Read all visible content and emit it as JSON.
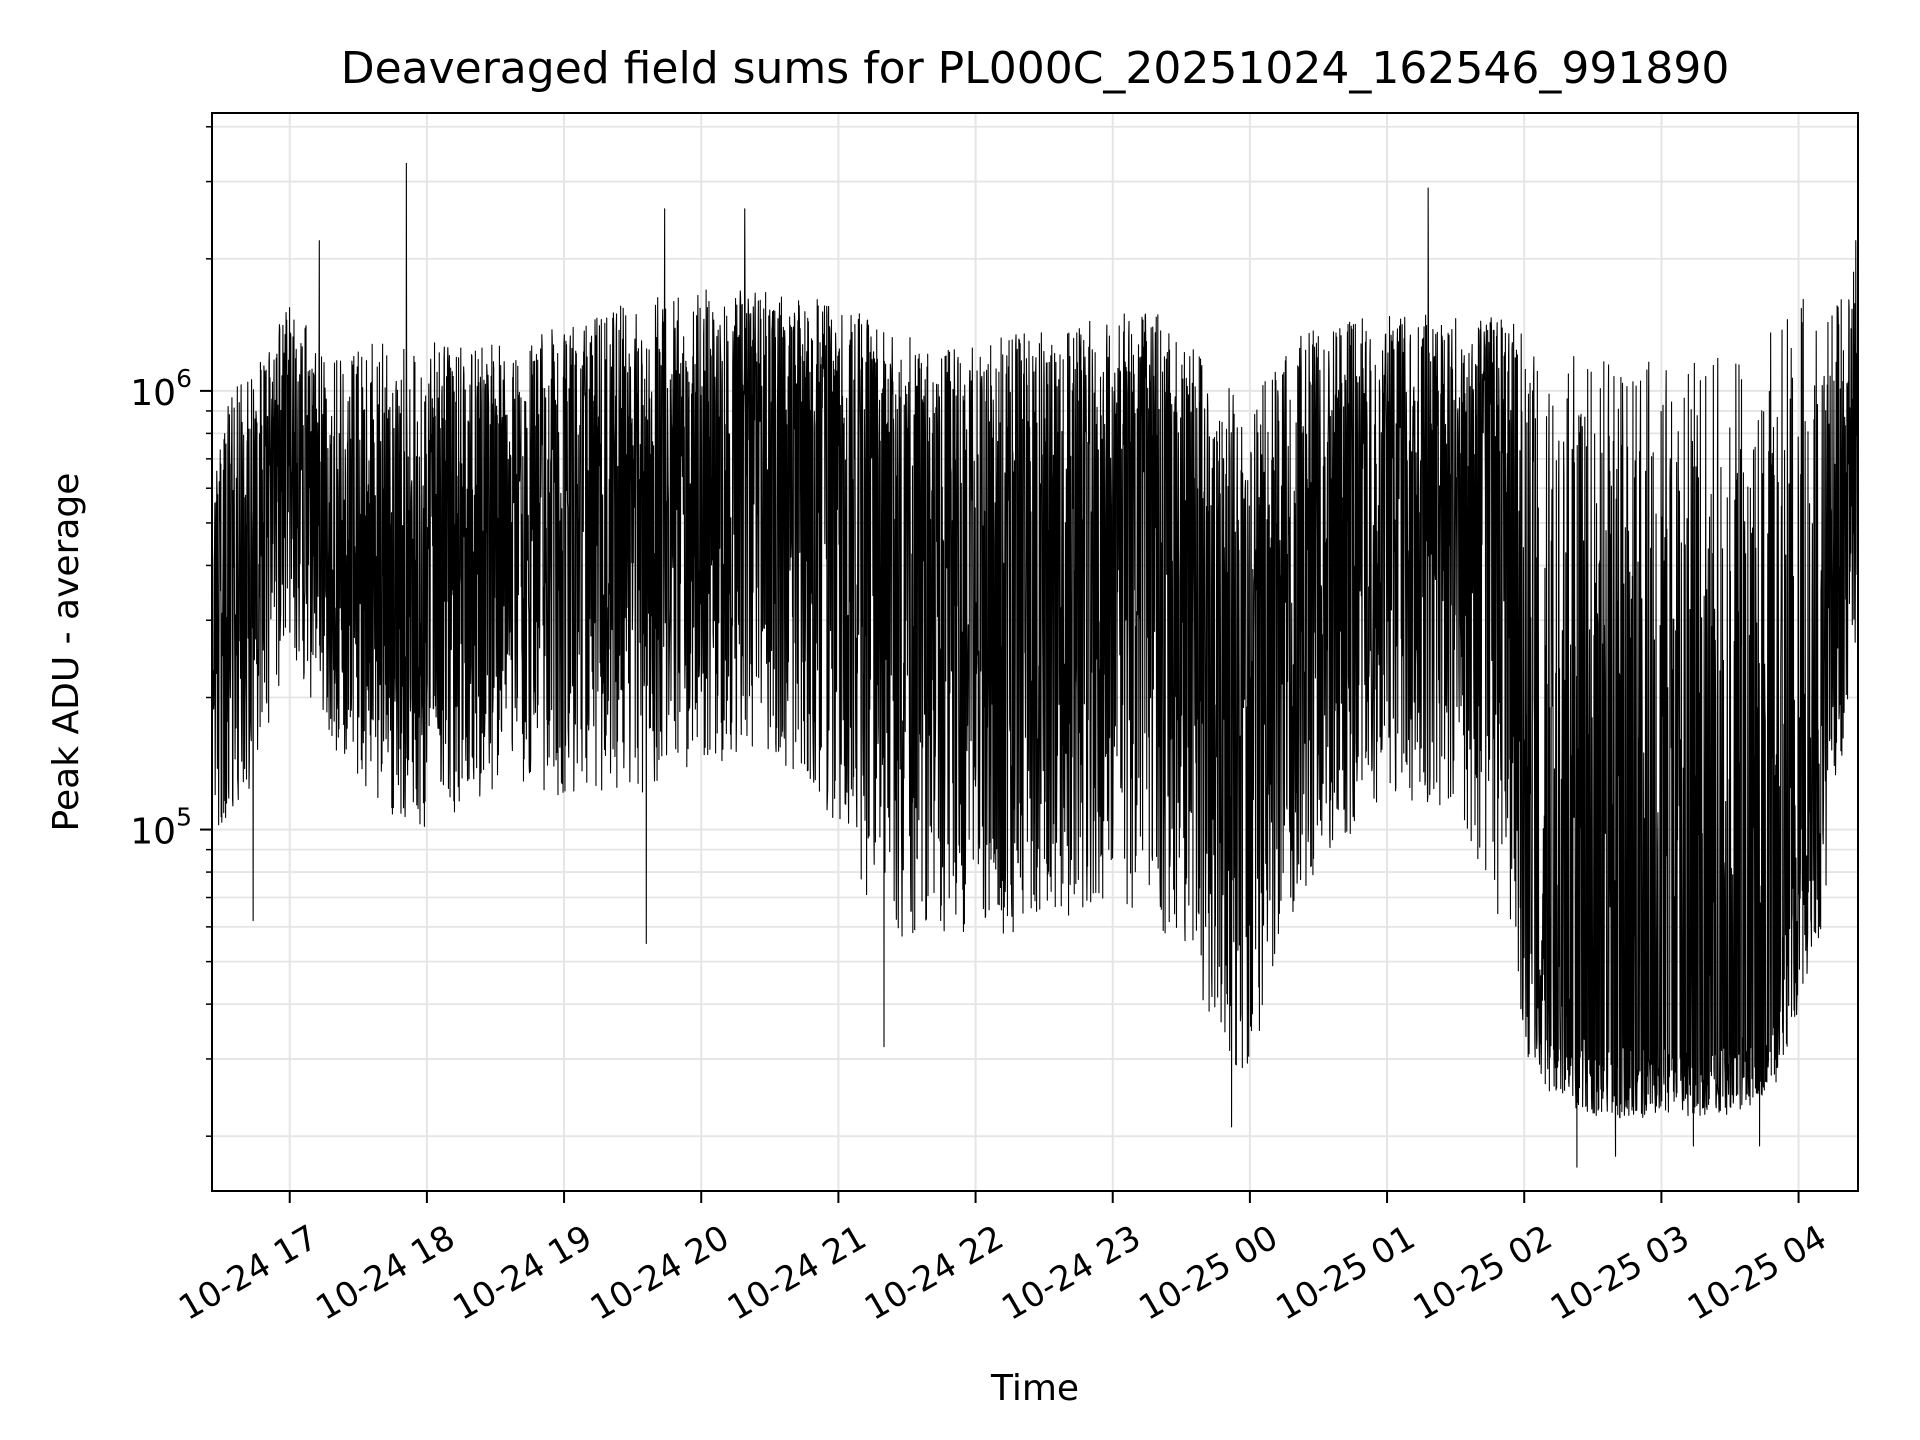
{
  "chart_data": {
    "type": "line",
    "title": "Deaveraged field sums for PL000C_20251024_162546_991890",
    "xlabel": "Time",
    "ylabel": "Peak ADU - average",
    "yscale": "log",
    "grid": true,
    "line_color": "#000000",
    "grid_color": "#e5e5e5",
    "xlim": [
      "2025-10-24 16:26",
      "2025-10-25 04:26"
    ],
    "ylim": [
      15000,
      4300000
    ],
    "xticks": [
      {
        "t": "2025-10-24 17:00",
        "label": "10-24 17"
      },
      {
        "t": "2025-10-24 18:00",
        "label": "10-24 18"
      },
      {
        "t": "2025-10-24 19:00",
        "label": "10-24 19"
      },
      {
        "t": "2025-10-24 20:00",
        "label": "10-24 20"
      },
      {
        "t": "2025-10-24 21:00",
        "label": "10-24 21"
      },
      {
        "t": "2025-10-24 22:00",
        "label": "10-24 22"
      },
      {
        "t": "2025-10-24 23:00",
        "label": "10-24 23"
      },
      {
        "t": "2025-10-25 00:00",
        "label": "10-25 00"
      },
      {
        "t": "2025-10-25 01:00",
        "label": "10-25 01"
      },
      {
        "t": "2025-10-25 02:00",
        "label": "10-25 02"
      },
      {
        "t": "2025-10-25 03:00",
        "label": "10-25 03"
      },
      {
        "t": "2025-10-25 04:00",
        "label": "10-25 04"
      }
    ],
    "yticks": [
      {
        "value": 100000,
        "base": "10",
        "exp": "5"
      },
      {
        "value": 1000000,
        "base": "10",
        "exp": "6"
      }
    ],
    "envelope": {
      "note_times": "approximate values read from the plot",
      "t": [
        "2025-10-24 16:26",
        "2025-10-24 16:40",
        "2025-10-24 17:00",
        "2025-10-24 17:20",
        "2025-10-24 17:40",
        "2025-10-24 18:00",
        "2025-10-24 18:30",
        "2025-10-24 19:00",
        "2025-10-24 19:30",
        "2025-10-24 20:00",
        "2025-10-24 20:30",
        "2025-10-24 21:00",
        "2025-10-24 21:20",
        "2025-10-24 21:40",
        "2025-10-24 22:00",
        "2025-10-24 22:30",
        "2025-10-24 23:00",
        "2025-10-24 23:20",
        "2025-10-24 23:40",
        "2025-10-25 00:00",
        "2025-10-25 00:15",
        "2025-10-25 00:30",
        "2025-10-25 01:00",
        "2025-10-25 01:30",
        "2025-10-25 01:50",
        "2025-10-25 02:05",
        "2025-10-25 02:30",
        "2025-10-25 03:00",
        "2025-10-25 03:30",
        "2025-10-25 03:50",
        "2025-10-25 04:10",
        "2025-10-25 04:26"
      ],
      "typical": [
        350000,
        450000,
        700000,
        450000,
        350000,
        350000,
        400000,
        450000,
        500000,
        650000,
        800000,
        750000,
        550000,
        450000,
        400000,
        350000,
        500000,
        600000,
        350000,
        150000,
        250000,
        400000,
        600000,
        600000,
        700000,
        60000,
        32000,
        32000,
        32000,
        40000,
        250000,
        700000
      ],
      "low": [
        100000,
        110000,
        250000,
        150000,
        110000,
        100000,
        120000,
        120000,
        120000,
        130000,
        150000,
        100000,
        55000,
        60000,
        55000,
        60000,
        70000,
        60000,
        40000,
        25000,
        60000,
        80000,
        120000,
        110000,
        60000,
        25000,
        22000,
        22000,
        22000,
        25000,
        60000,
        300000
      ],
      "high": [
        800000,
        1100000,
        1600000,
        1200000,
        1300000,
        1300000,
        1300000,
        1400000,
        1600000,
        1700000,
        1700000,
        1600000,
        1400000,
        1300000,
        1300000,
        1400000,
        1500000,
        1500000,
        1200000,
        900000,
        1300000,
        1400000,
        1500000,
        1500000,
        1500000,
        1300000,
        1200000,
        1200000,
        1200000,
        1500000,
        1700000,
        2000000
      ]
    },
    "spikes": [
      {
        "t": "2025-10-24 17:51",
        "value": 3300000
      },
      {
        "t": "2025-10-25 01:18",
        "value": 2900000
      },
      {
        "t": "2025-10-24 20:19",
        "value": 2600000
      },
      {
        "t": "2025-10-24 19:44",
        "value": 2600000
      },
      {
        "t": "2025-10-24 17:13",
        "value": 2200000
      },
      {
        "t": "2025-10-25 04:25",
        "value": 2200000
      },
      {
        "t": "2025-10-24 21:20",
        "value": 32000
      },
      {
        "t": "2025-10-24 23:52",
        "value": 21000
      },
      {
        "t": "2025-10-25 02:23",
        "value": 17000
      },
      {
        "t": "2025-10-25 02:40",
        "value": 18000
      },
      {
        "t": "2025-10-25 03:14",
        "value": 19000
      },
      {
        "t": "2025-10-25 03:43",
        "value": 19000
      },
      {
        "t": "2025-10-24 16:44",
        "value": 62000
      },
      {
        "t": "2025-10-24 19:36",
        "value": 55000
      }
    ]
  }
}
